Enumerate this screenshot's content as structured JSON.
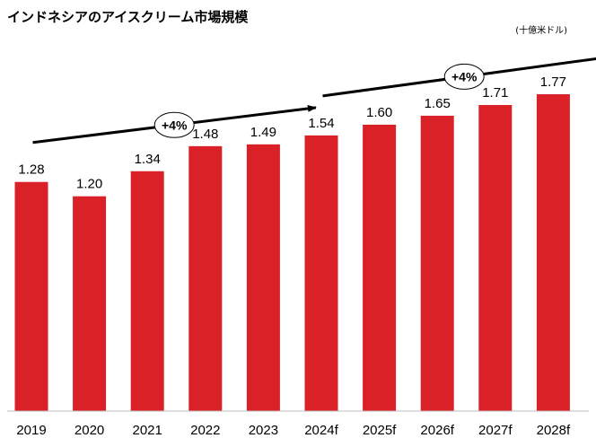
{
  "chart_data": {
    "type": "bar",
    "title": "インドネシアのアイスクリーム市場規模",
    "unit_label": "(十億米ドル)",
    "categories": [
      "2019",
      "2020",
      "2021",
      "2022",
      "2023",
      "2024f",
      "2025f",
      "2026f",
      "2027f",
      "2028f"
    ],
    "values": [
      1.28,
      1.2,
      1.34,
      1.48,
      1.49,
      1.54,
      1.6,
      1.65,
      1.71,
      1.77
    ],
    "value_labels": [
      "1.28",
      "1.20",
      "1.34",
      "1.48",
      "1.49",
      "1.54",
      "1.60",
      "1.65",
      "1.71",
      "1.77"
    ],
    "ylim": [
      0,
      1.77
    ],
    "grid": false,
    "bar_color": "#DA2128",
    "growth_annotations": [
      {
        "label": "+4%",
        "from": "2019",
        "to": "2023"
      },
      {
        "label": "+4%",
        "from": "2024f",
        "to": "2028f"
      }
    ]
  }
}
